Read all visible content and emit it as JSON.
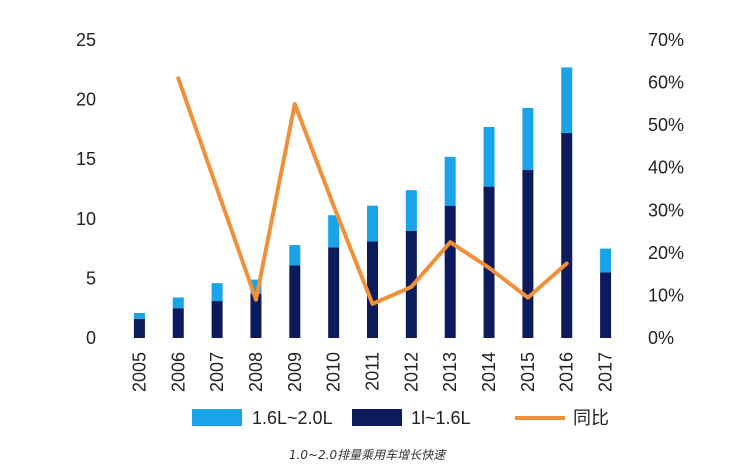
{
  "chart_data": {
    "type": "bar",
    "categories": [
      "2005",
      "2006",
      "2007",
      "2008",
      "2009",
      "2010",
      "2011",
      "2012",
      "2013",
      "2014",
      "2015",
      "2016",
      "2017"
    ],
    "series": [
      {
        "name": "1l~1.6L",
        "kind": "stacked-bar",
        "axis": "left",
        "color": "#0d1b5c",
        "values": [
          1.6,
          2.5,
          3.1,
          3.7,
          6.1,
          7.6,
          8.1,
          9.0,
          11.1,
          12.7,
          14.1,
          17.2,
          5.5
        ]
      },
      {
        "name": "1.6L~2.0L",
        "kind": "stacked-bar",
        "axis": "left",
        "color": "#1aa3e8",
        "values": [
          0.5,
          0.9,
          1.5,
          1.2,
          1.7,
          2.7,
          3.0,
          3.4,
          4.1,
          5.0,
          5.2,
          5.5,
          2.0
        ]
      },
      {
        "name": "同比",
        "kind": "line",
        "axis": "right",
        "color": "#f0913a",
        "values": [
          null,
          0.61,
          0.35,
          0.09,
          0.55,
          0.31,
          0.08,
          0.12,
          0.225,
          0.165,
          0.095,
          0.175,
          null
        ]
      }
    ],
    "y_left": {
      "ylim": [
        0,
        25
      ],
      "ticks": [
        0,
        5,
        10,
        15,
        20,
        25
      ],
      "tick_labels": [
        "0",
        "5",
        "10",
        "15",
        "20",
        "25"
      ]
    },
    "y_right": {
      "ylim": [
        0,
        0.7
      ],
      "ticks": [
        0,
        0.1,
        0.2,
        0.3,
        0.4,
        0.5,
        0.6,
        0.7
      ],
      "tick_labels": [
        "0%",
        "10%",
        "20%",
        "30%",
        "40%",
        "50%",
        "60%",
        "70%"
      ]
    },
    "title": "",
    "xlabel": "",
    "ylabel": "",
    "grid": false,
    "legend": {
      "placement": "bottom",
      "entries": [
        "1.6L~2.0L",
        "1l~1.6L",
        "同比"
      ]
    },
    "caption": "1.0~2.0排量乘用车增长快速"
  }
}
